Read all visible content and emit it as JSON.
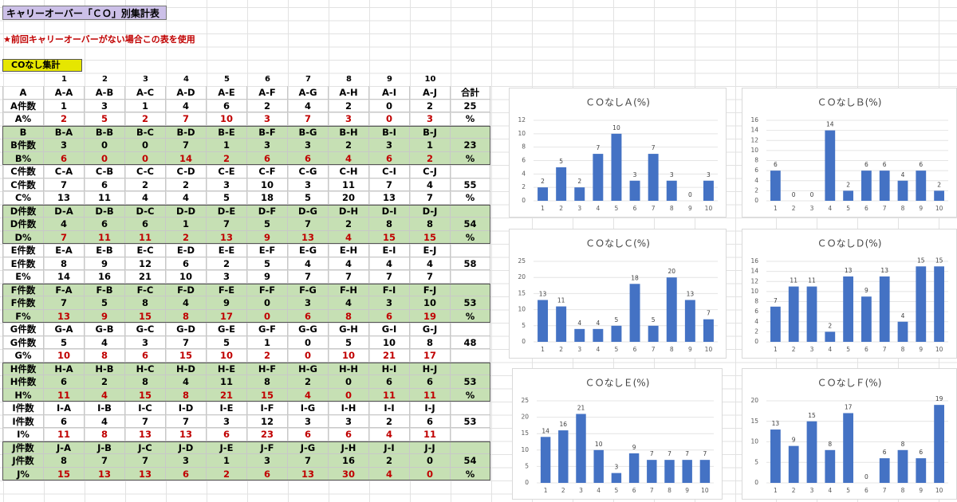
{
  "header": {
    "title": "キャリーオーバー「ＣＯ」別集計表",
    "note": "★前回キャリーオーバーがない場合この表を使用",
    "section_label": "COなし集計"
  },
  "table": {
    "columns": [
      1,
      2,
      3,
      4,
      5,
      6,
      7,
      8,
      9,
      10
    ],
    "groups": [
      {
        "shaded": false,
        "percent_color": "#c00000",
        "rows": [
          [
            "A",
            "A-A",
            "A-B",
            "A-C",
            "A-D",
            "A-E",
            "A-F",
            "A-G",
            "A-H",
            "A-I",
            "A-J",
            "合計"
          ],
          [
            "A件数",
            1,
            3,
            1,
            4,
            6,
            2,
            4,
            2,
            0,
            2,
            25
          ],
          [
            "A%",
            2,
            5,
            2,
            7,
            10,
            3,
            7,
            3,
            0,
            3,
            "%"
          ]
        ]
      },
      {
        "shaded": true,
        "percent_color": "#c00000",
        "rows": [
          [
            "B",
            "B-A",
            "B-B",
            "B-C",
            "B-D",
            "B-E",
            "B-F",
            "B-G",
            "B-H",
            "B-I",
            "B-J",
            null
          ],
          [
            "B件数",
            3,
            0,
            0,
            7,
            1,
            3,
            3,
            2,
            3,
            1,
            23
          ],
          [
            "B%",
            6,
            0,
            0,
            14,
            2,
            6,
            6,
            4,
            6,
            2,
            "%"
          ]
        ]
      },
      {
        "shaded": false,
        "percent_color": "#000000",
        "rows": [
          [
            "C件数",
            "C-A",
            "C-B",
            "C-C",
            "C-D",
            "C-E",
            "C-F",
            "C-G",
            "C-H",
            "C-I",
            "C-J",
            null
          ],
          [
            "C件数",
            7,
            6,
            2,
            2,
            3,
            10,
            3,
            11,
            7,
            4,
            55
          ],
          [
            "C%",
            13,
            11,
            4,
            4,
            5,
            18,
            5,
            20,
            13,
            7,
            "%"
          ]
        ]
      },
      {
        "shaded": true,
        "percent_color": "#c00000",
        "rows": [
          [
            "D件数",
            "D-A",
            "D-B",
            "D-C",
            "D-D",
            "D-E",
            "D-F",
            "D-G",
            "D-H",
            "D-I",
            "D-J",
            null
          ],
          [
            "D件数",
            4,
            6,
            6,
            1,
            7,
            5,
            7,
            2,
            8,
            8,
            54
          ],
          [
            "D%",
            7,
            11,
            11,
            2,
            13,
            9,
            13,
            4,
            15,
            15,
            "%"
          ]
        ]
      },
      {
        "shaded": false,
        "percent_color": "#000000",
        "rows": [
          [
            "E件数",
            "E-A",
            "E-B",
            "E-C",
            "E-D",
            "E-E",
            "E-F",
            "E-G",
            "E-H",
            "E-I",
            "E-J",
            null
          ],
          [
            "E件数",
            8,
            9,
            12,
            6,
            2,
            5,
            4,
            4,
            4,
            4,
            58
          ],
          [
            "E%",
            14,
            16,
            21,
            10,
            3,
            9,
            7,
            7,
            7,
            7,
            null
          ]
        ]
      },
      {
        "shaded": true,
        "percent_color": "#c00000",
        "rows": [
          [
            "F件数",
            "F-A",
            "F-B",
            "F-C",
            "F-D",
            "F-E",
            "F-F",
            "F-G",
            "F-H",
            "F-I",
            "F-J",
            null
          ],
          [
            "F件数",
            7,
            5,
            8,
            4,
            9,
            0,
            3,
            4,
            3,
            10,
            53
          ],
          [
            "F%",
            13,
            9,
            15,
            8,
            17,
            0,
            6,
            8,
            6,
            19,
            "%"
          ]
        ]
      },
      {
        "shaded": false,
        "percent_color": "#c00000",
        "rows": [
          [
            "G件数",
            "G-A",
            "G-B",
            "G-C",
            "G-D",
            "G-E",
            "G-F",
            "G-G",
            "G-H",
            "G-I",
            "G-J",
            null
          ],
          [
            "G件数",
            5,
            4,
            3,
            7,
            5,
            1,
            0,
            5,
            10,
            8,
            48
          ],
          [
            "G%",
            10,
            8,
            6,
            15,
            10,
            2,
            0,
            10,
            21,
            17,
            null
          ]
        ]
      },
      {
        "shaded": true,
        "percent_color": "#c00000",
        "rows": [
          [
            "H件数",
            "H-A",
            "H-B",
            "H-C",
            "H-D",
            "H-E",
            "H-F",
            "H-G",
            "H-H",
            "H-I",
            "H-J",
            null
          ],
          [
            "H件数",
            6,
            2,
            8,
            4,
            11,
            8,
            2,
            0,
            6,
            6,
            53
          ],
          [
            "H%",
            11,
            4,
            15,
            8,
            21,
            15,
            4,
            0,
            11,
            11,
            "%"
          ]
        ]
      },
      {
        "shaded": false,
        "percent_color": "#c00000",
        "rows": [
          [
            "I件数",
            "I-A",
            "I-B",
            "I-C",
            "I-D",
            "I-E",
            "I-F",
            "I-G",
            "I-H",
            "I-I",
            "I-J",
            null
          ],
          [
            "I件数",
            6,
            4,
            7,
            7,
            3,
            12,
            3,
            3,
            2,
            6,
            53
          ],
          [
            "I%",
            11,
            8,
            13,
            13,
            6,
            23,
            6,
            6,
            4,
            11,
            null
          ]
        ]
      },
      {
        "shaded": true,
        "percent_color": "#c00000",
        "rows": [
          [
            "J件数",
            "J-A",
            "J-B",
            "J-C",
            "J-D",
            "J-E",
            "J-F",
            "J-G",
            "J-H",
            "J-I",
            "J-J",
            null
          ],
          [
            "J件数",
            8,
            7,
            7,
            3,
            1,
            3,
            7,
            16,
            2,
            0,
            54
          ],
          [
            "J%",
            15,
            13,
            13,
            6,
            2,
            6,
            13,
            30,
            4,
            0,
            "%"
          ]
        ]
      }
    ]
  },
  "chart_data": [
    {
      "type": "bar",
      "title": "ＣＯなしＡ(%)",
      "categories": [
        1,
        2,
        3,
        4,
        5,
        6,
        7,
        8,
        9,
        10
      ],
      "values": [
        2,
        5,
        2,
        7,
        10,
        3,
        7,
        3,
        0,
        3
      ],
      "color": "#4472c4",
      "ylim": [
        0,
        12
      ],
      "yticks": [
        0,
        2,
        4,
        6,
        8,
        10,
        12
      ],
      "grid": true
    },
    {
      "type": "bar",
      "title": "ＣＯなしＢ(%)",
      "categories": [
        1,
        2,
        3,
        4,
        5,
        6,
        7,
        8,
        9,
        10
      ],
      "values": [
        6,
        0,
        0,
        14,
        2,
        6,
        6,
        4,
        6,
        2
      ],
      "color": "#4472c4",
      "ylim": [
        0,
        16
      ],
      "yticks": [
        0,
        2,
        4,
        6,
        8,
        10,
        12,
        14,
        16
      ],
      "grid": true
    },
    {
      "type": "bar",
      "title": "ＣＯなしＣ(%)",
      "categories": [
        1,
        2,
        3,
        4,
        5,
        6,
        7,
        8,
        9,
        10
      ],
      "values": [
        13,
        11,
        4,
        4,
        5,
        18,
        5,
        20,
        13,
        7
      ],
      "color": "#4472c4",
      "ylim": [
        0,
        25
      ],
      "yticks": [
        0,
        5,
        10,
        15,
        20,
        25
      ],
      "grid": true
    },
    {
      "type": "bar",
      "title": "ＣＯなしＤ(%)",
      "categories": [
        1,
        2,
        3,
        4,
        5,
        6,
        7,
        8,
        9,
        10
      ],
      "values": [
        7,
        11,
        11,
        2,
        13,
        9,
        13,
        4,
        15,
        15
      ],
      "color": "#4472c4",
      "ylim": [
        0,
        16
      ],
      "yticks": [
        0,
        2,
        4,
        6,
        8,
        10,
        12,
        14,
        16
      ],
      "grid": true
    },
    {
      "type": "bar",
      "title": "ＣＯなしＥ(%)",
      "categories": [
        1,
        2,
        3,
        4,
        5,
        6,
        7,
        8,
        9,
        10
      ],
      "values": [
        14,
        16,
        21,
        10,
        3,
        9,
        7,
        7,
        7,
        7
      ],
      "color": "#4472c4",
      "ylim": [
        0,
        25
      ],
      "yticks": [
        0,
        5,
        10,
        15,
        20,
        25
      ],
      "grid": true
    },
    {
      "type": "bar",
      "title": "ＣＯなしＦ(%)",
      "categories": [
        1,
        2,
        3,
        4,
        5,
        6,
        7,
        8,
        9,
        10
      ],
      "values": [
        13,
        9,
        15,
        8,
        17,
        0,
        6,
        8,
        6,
        19
      ],
      "color": "#4472c4",
      "ylim": [
        0,
        20
      ],
      "yticks": [
        0,
        5,
        10,
        15,
        20
      ],
      "grid": true
    }
  ]
}
